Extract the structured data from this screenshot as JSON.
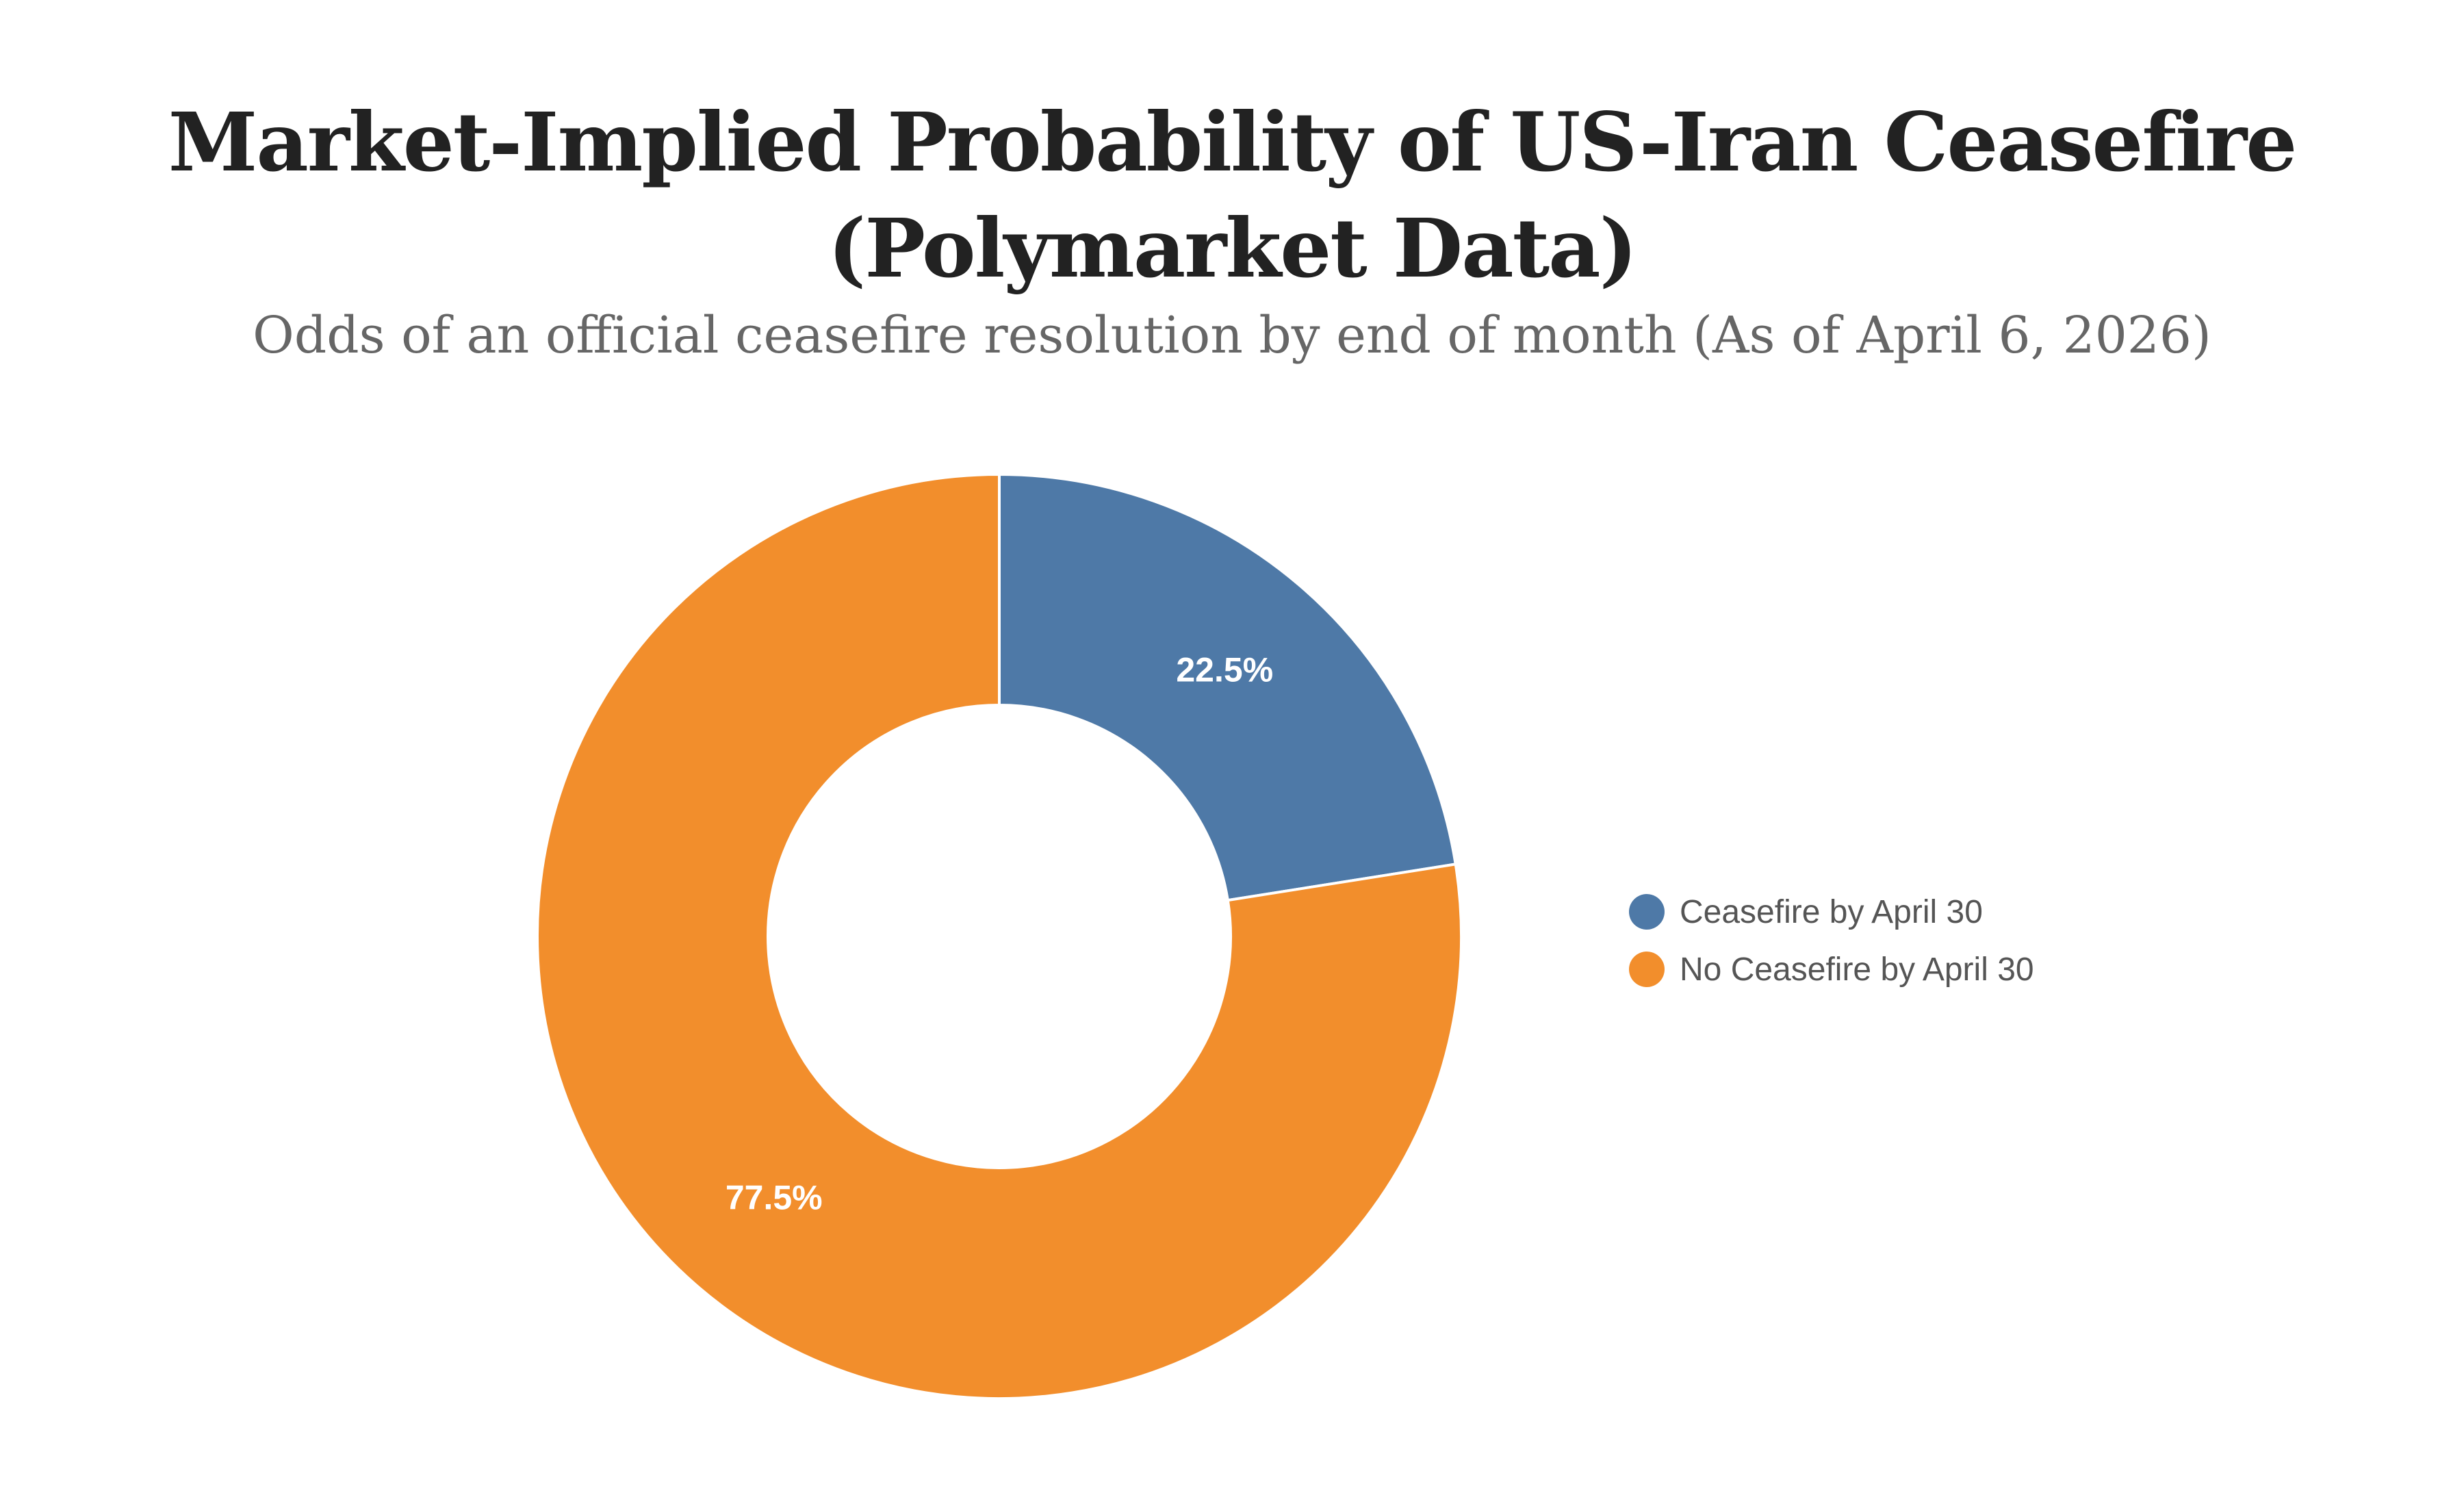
{
  "chart_data": {
    "type": "pie",
    "variant": "donut",
    "title_lines": [
      "Market-Implied Probability of US-Iran Ceasefire",
      "(Polymarket Data)"
    ],
    "subtitle": "Odds of an official ceasefire resolution by end of month (As of April 6, 2026)",
    "unit": "%",
    "slices": [
      {
        "name": "Ceasefire by April 30",
        "value": 22.5,
        "label": "22.5%",
        "color": "#4e79a7"
      },
      {
        "name": "No Ceasefire by April 30",
        "value": 77.5,
        "label": "77.5%",
        "color": "#f28e2c"
      }
    ],
    "start_angle": "12 o'clock",
    "direction": "clockwise",
    "legend_position": "right"
  }
}
